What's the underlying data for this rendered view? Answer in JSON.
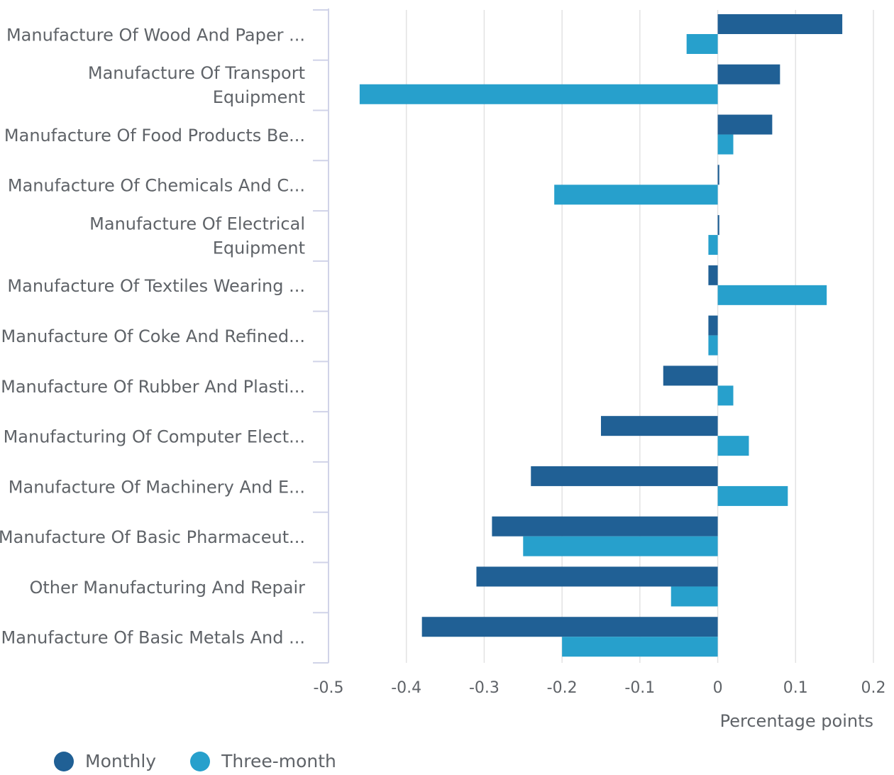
{
  "chart_data": {
    "type": "bar",
    "orientation": "horizontal",
    "categories": [
      [
        "Manufacture Of Wood And Paper ..."
      ],
      [
        "Manufacture Of Transport",
        "Equipment"
      ],
      [
        "Manufacture Of Food Products Be..."
      ],
      [
        "Manufacture Of Chemicals And C..."
      ],
      [
        "Manufacture Of Electrical",
        "Equipment"
      ],
      [
        "Manufacture Of Textiles Wearing ..."
      ],
      [
        "Manufacture Of Coke And Refined..."
      ],
      [
        "Manufacture Of Rubber And Plasti..."
      ],
      [
        "Manufacturing Of Computer Elect..."
      ],
      [
        "Manufacture Of Machinery And E..."
      ],
      [
        "Manufacture Of Basic Pharmaceut..."
      ],
      [
        "Other Manufacturing And Repair"
      ],
      [
        "Manufacture Of Basic Metals And ..."
      ]
    ],
    "series": [
      {
        "name": "Monthly",
        "color": "#206095",
        "values": [
          0.16,
          0.08,
          0.07,
          0.002,
          0.002,
          -0.012,
          -0.012,
          -0.07,
          -0.15,
          -0.24,
          -0.29,
          -0.31,
          -0.38
        ]
      },
      {
        "name": "Three-month",
        "color": "#27a0cc",
        "values": [
          -0.04,
          -0.46,
          0.02,
          -0.21,
          -0.012,
          0.14,
          -0.012,
          0.02,
          0.04,
          0.09,
          -0.25,
          -0.06,
          -0.2
        ]
      }
    ],
    "xlabel": "Percentage points",
    "ylabel": "",
    "xlim": [
      -0.5,
      0.2
    ],
    "xticks": [
      "-0.5",
      "-0.4",
      "-0.3",
      "-0.2",
      "-0.1",
      "0",
      "0.1",
      "0.2"
    ],
    "xtick_values": [
      -0.5,
      -0.4,
      -0.3,
      -0.2,
      -0.1,
      0,
      0.1,
      0.2
    ],
    "grid": true,
    "legend_position": "bottom-left"
  },
  "legend": {
    "monthly_label": "Monthly",
    "three_month_label": "Three-month"
  }
}
